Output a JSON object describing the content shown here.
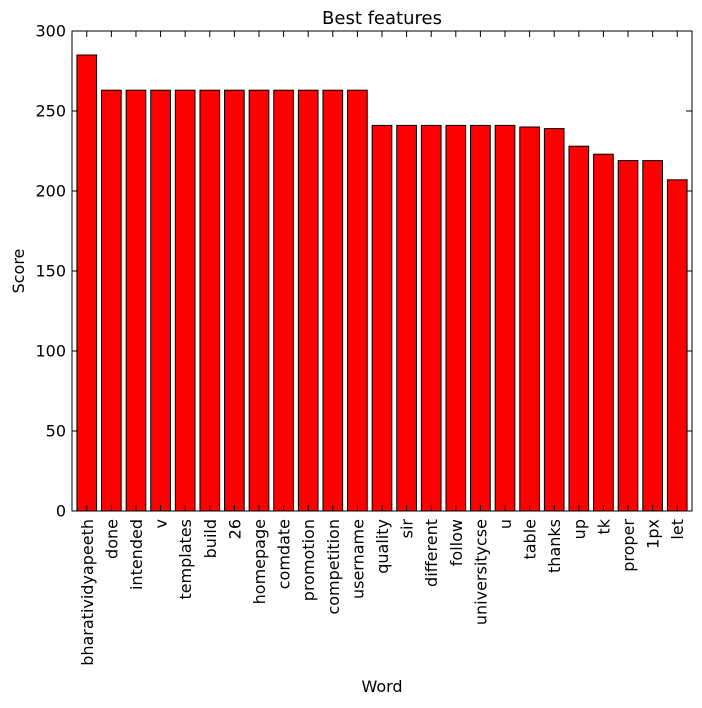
{
  "chart_data": {
    "type": "bar",
    "title": "Best features",
    "xlabel": "Word",
    "ylabel": "Score",
    "ylim": [
      0,
      300
    ],
    "yticks": [
      0,
      50,
      100,
      150,
      200,
      250,
      300
    ],
    "grid": false,
    "bar_color": "#ff0000",
    "categories": [
      "bharatividyapeeth",
      "done",
      "intended",
      "v",
      "templates",
      "build",
      "26",
      "homepage",
      "comdate",
      "promotion",
      "competition",
      "username",
      "quality",
      "sir",
      "different",
      "follow",
      "universitycse",
      "u",
      "table",
      "thanks",
      "up",
      "tk",
      "proper",
      "1px",
      "let"
    ],
    "values": [
      285,
      263,
      263,
      263,
      263,
      263,
      263,
      263,
      263,
      263,
      263,
      263,
      241,
      241,
      241,
      241,
      241,
      241,
      240,
      239,
      228,
      223,
      219,
      219,
      207
    ]
  }
}
